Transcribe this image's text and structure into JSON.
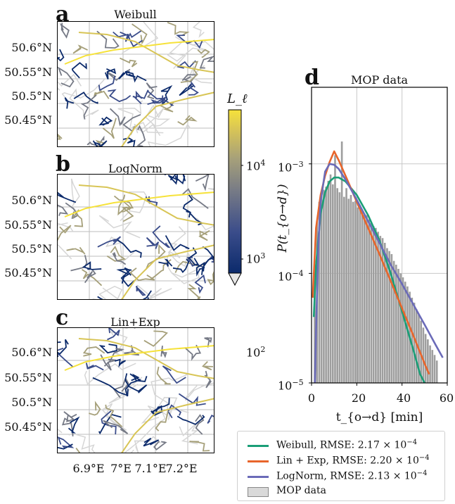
{
  "maps": [
    {
      "letter": "a",
      "title": "Weibull"
    },
    {
      "letter": "b",
      "title": "LogNorm"
    },
    {
      "letter": "c",
      "title": "Lin+Exp"
    }
  ],
  "lat_ticks": [
    "50.6°N",
    "50.55°N",
    "50.5°N",
    "50.45°N"
  ],
  "lon_ticks": [
    "6.9°E",
    "7°E",
    "7.1°E",
    "7.2°E"
  ],
  "colorbar": {
    "label": "L_ℓ",
    "ticks": [
      "10",
      "10",
      "10"
    ],
    "tick_exponents": [
      "4",
      "3",
      "2"
    ],
    "scale": "log",
    "range": [
      100,
      40000
    ],
    "colors": [
      "#0b2a6b",
      "#3a4c8a",
      "#767a86",
      "#a6a07a",
      "#d8c556",
      "#f6e23a"
    ]
  },
  "hist_panel": {
    "letter": "d",
    "title": "MOP data"
  },
  "chart_data": {
    "type": "line",
    "title": "MOP data",
    "xlabel": "t_{o→d} [min]",
    "ylabel": "P(t_{o→d})",
    "xlim": [
      0,
      60
    ],
    "ylim": [
      1e-05,
      0.005
    ],
    "yscale": "log",
    "x_ticks": [
      "0",
      "20",
      "40",
      "60"
    ],
    "y_ticks": [
      {
        "base": "10",
        "exp": "−3"
      },
      {
        "base": "10",
        "exp": "−4"
      },
      {
        "base": "10",
        "exp": "−5"
      }
    ],
    "grid": true,
    "legend_position": "below",
    "histogram": {
      "name": "MOP data",
      "color": "#9e9e9e",
      "bin_width": 1,
      "bins_start": 0,
      "values": [
        7e-06,
        0.00012,
        0.0003,
        0.00045,
        0.00052,
        0.00058,
        0.00062,
        0.0007,
        0.0008,
        0.00065,
        0.0012,
        0.0006,
        0.00055,
        0.0016,
        0.0005,
        0.0006,
        0.00048,
        0.00052,
        0.00045,
        0.00046,
        0.0004,
        0.00042,
        0.00037,
        0.00035,
        0.00034,
        0.00031,
        0.00029,
        0.00027,
        0.00026,
        0.00024,
        0.00022,
        0.00021,
        0.00019,
        0.00017,
        0.00016,
        0.00015,
        0.00013,
        0.00012,
        0.00011,
        0.0001,
        9.2e-05,
        8.4e-05,
        7.6e-05,
        6.8e-05,
        6e-05,
        5.4e-05,
        4.7e-05,
        4.2e-05,
        3.7e-05,
        3.2e-05,
        2.8e-05,
        2.5e-05,
        2.2e-05,
        2e-05,
        1.8e-05,
        1.6e-05
      ]
    },
    "series": [
      {
        "name": "Weibull",
        "label": "Weibull, RMSE: 2.17 × 10",
        "exp": "−4",
        "color": "#1a9e77",
        "x": [
          1,
          2,
          4,
          6,
          8,
          10,
          12,
          15,
          20,
          25,
          30,
          35,
          40,
          45,
          48,
          50
        ],
        "y": [
          4e-05,
          0.00012,
          0.00035,
          0.00055,
          0.00069,
          0.00075,
          0.00075,
          0.00069,
          0.00052,
          0.00034,
          0.0002,
          0.0001,
          4.5e-05,
          2e-05,
          1.2e-05,
          1e-05
        ]
      },
      {
        "name": "Lin + Exp",
        "label": "Lin + Exp, RMSE: 2.20 × 10",
        "exp": "−4",
        "color": "#e8652b",
        "x": [
          0.5,
          2,
          4,
          6,
          8,
          10,
          12,
          15,
          20,
          25,
          30,
          35,
          40,
          45,
          50,
          52
        ],
        "y": [
          6e-05,
          0.00026,
          0.00052,
          0.00078,
          0.00104,
          0.0013,
          0.00108,
          0.00078,
          0.00045,
          0.00026,
          0.00015,
          8.5e-05,
          4.8e-05,
          2.7e-05,
          1.5e-05,
          1.2e-05
        ]
      },
      {
        "name": "LogNorm",
        "label": "LogNorm, RMSE: 2.13 × 10",
        "exp": "−4",
        "color": "#6b6bb8",
        "x": [
          1.5,
          2,
          3,
          4,
          6,
          8,
          10,
          12,
          15,
          20,
          25,
          30,
          35,
          40,
          45,
          50,
          55,
          58
        ],
        "y": [
          1e-05,
          3e-05,
          0.00018,
          0.00045,
          0.00085,
          0.001,
          0.00098,
          0.0009,
          0.00072,
          0.00047,
          0.0003,
          0.00019,
          0.00012,
          8e-05,
          5.2e-05,
          3.4e-05,
          2.2e-05,
          1.7e-05
        ]
      }
    ]
  },
  "legend": {
    "hist_label": "MOP data"
  }
}
